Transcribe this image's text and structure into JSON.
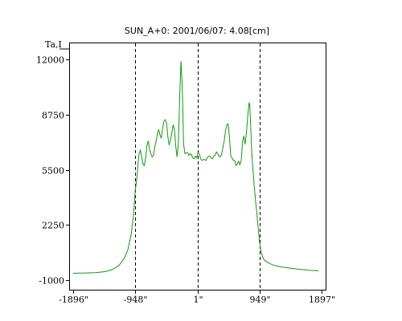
{
  "chart_data": {
    "type": "line",
    "title": "SUN_A+0: 2001/06/07: 4.08[cm]",
    "ylabel": "Ta,I",
    "xlabel": "",
    "x_ticks": [
      {
        "value": -1896,
        "label": "-1896\""
      },
      {
        "value": -948,
        "label": "-948\""
      },
      {
        "value": 1,
        "label": "1\""
      },
      {
        "value": 949,
        "label": "949\""
      },
      {
        "value": 1897,
        "label": "1897\""
      }
    ],
    "y_ticks": [
      {
        "value": 12000,
        "label": "12000"
      },
      {
        "value": 8750,
        "label": "8750"
      },
      {
        "value": 5500,
        "label": "5500"
      },
      {
        "value": 2250,
        "label": "2250"
      },
      {
        "value": -1000,
        "label": "-1000"
      }
    ],
    "xlim": [
      -1896,
      1897
    ],
    "ylim": [
      -1000,
      12000
    ],
    "vlines_dashed": [
      -948,
      1,
      949
    ],
    "grid": false,
    "colors": {
      "series": "#119911",
      "axes": "#000000"
    },
    "series": [
      {
        "x": [
          -1896,
          -1700,
          -1550,
          -1400,
          -1300,
          -1200,
          -1120,
          -1060,
          -1010,
          -975,
          -958,
          -948,
          -935,
          -920,
          -905,
          -890,
          -870,
          -850,
          -830,
          -810,
          -790,
          -770,
          -750,
          -730,
          -710,
          -690,
          -670,
          -650,
          -630,
          -610,
          -590,
          -570,
          -550,
          -530,
          -510,
          -490,
          -470,
          -450,
          -430,
          -410,
          -390,
          -370,
          -350,
          -330,
          -310,
          -290,
          -270,
          -250,
          -230,
          -210,
          -190,
          -170,
          -150,
          -130,
          -110,
          -90,
          -70,
          -50,
          -30,
          -10,
          10,
          30,
          50,
          70,
          90,
          110,
          130,
          150,
          170,
          190,
          210,
          230,
          250,
          270,
          290,
          310,
          330,
          350,
          370,
          390,
          410,
          430,
          450,
          470,
          490,
          510,
          530,
          550,
          570,
          590,
          610,
          630,
          650,
          670,
          690,
          710,
          730,
          750,
          770,
          790,
          800,
          810,
          820,
          830,
          850,
          870,
          890,
          910,
          920,
          930,
          940,
          949,
          960,
          975,
          990,
          1010,
          1040,
          1090,
          1160,
          1250,
          1380,
          1550,
          1700,
          1850
        ],
        "y": [
          -600,
          -580,
          -560,
          -500,
          -380,
          -150,
          250,
          800,
          1700,
          2800,
          3700,
          4300,
          4650,
          5150,
          5900,
          6450,
          6650,
          6250,
          5850,
          5750,
          6200,
          6900,
          7200,
          6700,
          6450,
          6250,
          6350,
          6850,
          7150,
          7650,
          7850,
          7550,
          7350,
          7950,
          8350,
          8450,
          8250,
          7450,
          6950,
          7250,
          7650,
          8150,
          7900,
          6900,
          6250,
          7000,
          9800,
          11900,
          10400,
          7000,
          6450,
          6500,
          6500,
          6350,
          6450,
          6400,
          6200,
          6150,
          6300,
          6200,
          6500,
          6450,
          6150,
          6050,
          6100,
          6100,
          6050,
          6200,
          6300,
          6300,
          6200,
          6150,
          6300,
          6350,
          6550,
          6450,
          6300,
          6250,
          6400,
          6800,
          7200,
          7800,
          8150,
          8200,
          7400,
          6300,
          6200,
          6050,
          6050,
          5750,
          5850,
          6000,
          5800,
          6050,
          7150,
          7500,
          7000,
          7750,
          8700,
          9450,
          9350,
          8500,
          7500,
          6500,
          5500,
          4500,
          3600,
          2900,
          2400,
          2100,
          1650,
          1250,
          950,
          650,
          450,
          250,
          120,
          0,
          -120,
          -200,
          -280,
          -360,
          -420,
          -450
        ]
      }
    ]
  }
}
